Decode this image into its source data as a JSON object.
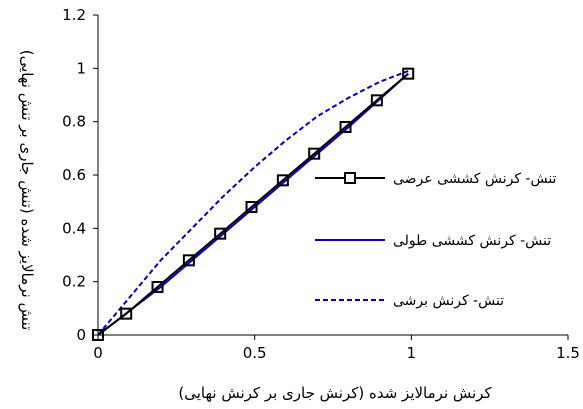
{
  "chart_data": {
    "type": "line",
    "title": "",
    "xlabel": "کرنش نرمالایز شده (کرنش جاری بر کرنش نهایی)",
    "ylabel": "تنش نرمالایز شده (تنش جاری بر تنش نهایی)",
    "xlim": [
      0,
      1.5
    ],
    "ylim": [
      0,
      1.2
    ],
    "xticks": [
      0,
      0.5,
      1,
      1.5
    ],
    "yticks": [
      0,
      0.2,
      0.4,
      0.6,
      0.8,
      1,
      1.2
    ],
    "xtick_labels": [
      "0",
      "0.5",
      "1",
      "1.5"
    ],
    "ytick_labels": [
      "0",
      "0.2",
      "0.4",
      "0.6",
      "0.8",
      "1",
      "1.2"
    ],
    "grid": false,
    "legend_position": "right",
    "series": [
      {
        "name": "تنش- کرنش کششی عرضی",
        "color": "#000000",
        "marker": "square",
        "x": [
          0,
          0.09,
          0.19,
          0.29,
          0.39,
          0.49,
          0.59,
          0.69,
          0.79,
          0.89,
          0.99
        ],
        "y": [
          0,
          0.08,
          0.18,
          0.28,
          0.38,
          0.48,
          0.58,
          0.68,
          0.78,
          0.88,
          0.98
        ]
      },
      {
        "name": "تنش- کرنش کششی طولی",
        "color": "#0000cc",
        "style": "solid",
        "x": [
          0,
          0.2,
          0.4,
          0.6,
          0.8,
          0.99
        ],
        "y": [
          0,
          0.18,
          0.38,
          0.58,
          0.78,
          0.98
        ]
      },
      {
        "name": "تنش- کرنش برشی",
        "color": "#0000cc",
        "style": "dashed",
        "x": [
          0,
          0.1,
          0.2,
          0.3,
          0.4,
          0.5,
          0.6,
          0.7,
          0.8,
          0.9,
          0.99
        ],
        "y": [
          0,
          0.14,
          0.28,
          0.4,
          0.52,
          0.63,
          0.73,
          0.82,
          0.89,
          0.95,
          0.99
        ]
      }
    ]
  }
}
